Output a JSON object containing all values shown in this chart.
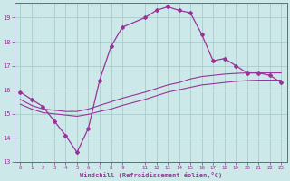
{
  "xlabel": "Windchill (Refroidissement éolien,°C)",
  "bg_color": "#cce8e8",
  "grid_color": "#aacccc",
  "line_color": "#993399",
  "spine_color": "#666688",
  "xlim": [
    -0.5,
    23.5
  ],
  "ylim": [
    13,
    19.6
  ],
  "yticks": [
    13,
    14,
    15,
    16,
    17,
    18,
    19
  ],
  "xticks": [
    0,
    1,
    2,
    3,
    4,
    5,
    6,
    7,
    8,
    9,
    11,
    12,
    13,
    14,
    15,
    16,
    17,
    18,
    19,
    20,
    21,
    22,
    23
  ],
  "line1_x": [
    0,
    1,
    2,
    3,
    4,
    5,
    6,
    7,
    8,
    9,
    11,
    12,
    13,
    14,
    15,
    16,
    17,
    18,
    19,
    20,
    21,
    22,
    23
  ],
  "line1_y": [
    15.9,
    15.6,
    15.3,
    14.7,
    14.1,
    13.4,
    14.4,
    16.4,
    17.8,
    18.6,
    19.0,
    19.3,
    19.45,
    19.3,
    19.2,
    18.3,
    17.2,
    17.3,
    17.0,
    16.7,
    16.7,
    16.6,
    16.3
  ],
  "line2_x": [
    0,
    1,
    2,
    3,
    4,
    5,
    6,
    7,
    8,
    9,
    11,
    12,
    13,
    14,
    15,
    16,
    17,
    18,
    19,
    20,
    21,
    22,
    23
  ],
  "line2_y": [
    15.6,
    15.35,
    15.2,
    15.15,
    15.1,
    15.1,
    15.2,
    15.35,
    15.5,
    15.65,
    15.9,
    16.05,
    16.2,
    16.3,
    16.45,
    16.55,
    16.6,
    16.65,
    16.68,
    16.7,
    16.7,
    16.7,
    16.7
  ],
  "line3_x": [
    0,
    1,
    2,
    3,
    4,
    5,
    6,
    7,
    8,
    9,
    11,
    12,
    13,
    14,
    15,
    16,
    17,
    18,
    19,
    20,
    21,
    22,
    23
  ],
  "line3_y": [
    15.4,
    15.2,
    15.05,
    15.0,
    14.95,
    14.9,
    14.98,
    15.1,
    15.2,
    15.35,
    15.6,
    15.75,
    15.9,
    16.0,
    16.1,
    16.2,
    16.25,
    16.3,
    16.35,
    16.38,
    16.4,
    16.4,
    16.4
  ]
}
